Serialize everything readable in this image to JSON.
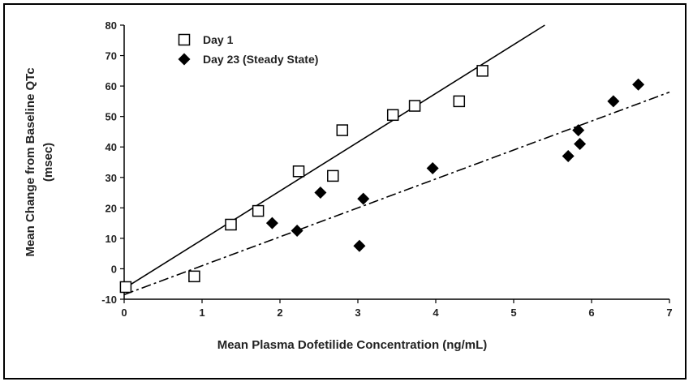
{
  "chart_data": {
    "type": "scatter",
    "xlabel": "Mean Plasma Dofetilide Concentration (ng/mL)",
    "ylabel_line1": "Mean Change from Baseline QTc",
    "ylabel_line2": "(msec)",
    "xlim": [
      0,
      7
    ],
    "ylim": [
      -10,
      80
    ],
    "x_ticks": [
      0,
      1,
      2,
      3,
      4,
      5,
      6,
      7
    ],
    "y_ticks": [
      -10,
      0,
      10,
      20,
      30,
      40,
      50,
      60,
      70,
      80
    ],
    "grid": false,
    "legend": "top-left",
    "series": [
      {
        "name": "Day 1",
        "marker": "open-square",
        "color": "#000000",
        "x": [
          0.02,
          0.9,
          1.37,
          1.72,
          2.24,
          2.68,
          2.8,
          3.45,
          3.73,
          4.3,
          4.6
        ],
        "y": [
          -6,
          -2.5,
          14.5,
          19,
          32,
          30.5,
          45.5,
          50.5,
          53.5,
          55,
          65
        ],
        "fit": {
          "style": "solid",
          "x": [
            0,
            5.4
          ],
          "y": [
            -6.5,
            80
          ]
        }
      },
      {
        "name": "Day 23 (Steady State)",
        "marker": "filled-diamond",
        "color": "#000000",
        "x": [
          1.9,
          2.22,
          2.52,
          3.02,
          3.07,
          3.96,
          5.7,
          5.83,
          5.85,
          6.28,
          6.6
        ],
        "y": [
          15,
          12.5,
          25,
          7.5,
          23,
          33,
          37,
          45.5,
          41,
          55,
          60.5
        ],
        "fit": {
          "style": "dash-dot",
          "x": [
            0,
            7
          ],
          "y": [
            -8.5,
            58
          ]
        }
      }
    ]
  }
}
